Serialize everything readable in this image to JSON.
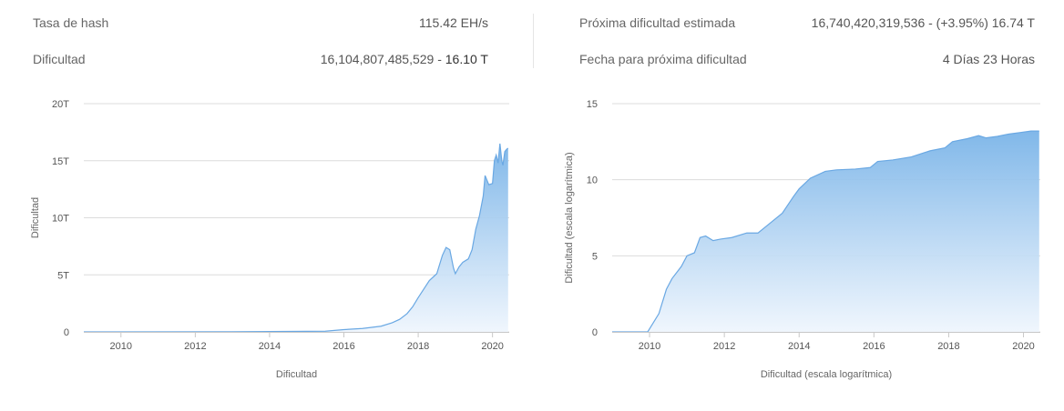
{
  "stats": {
    "hashrate_label": "Tasa de hash",
    "hashrate_value": "115.42 EH/s",
    "difficulty_label": "Dificultad",
    "difficulty_value": "16,104,807,485,529 - ",
    "difficulty_short": "16.10 T",
    "next_difficulty_label": "Próxima dificultad estimada",
    "next_difficulty_value": "16,740,420,319,536 - (+3.95%) 16.74 T",
    "next_date_label": "Fecha para próxima dificultad",
    "next_date_value": "4 Días 23 Horas"
  },
  "colors": {
    "area_top": "#7ab4e8",
    "area_bottom": "#eef5fd",
    "line": "#6aa8e3",
    "grid": "#dcdcdc"
  },
  "chart_data": [
    {
      "type": "area",
      "xlabel": "Dificultad",
      "ylabel": "Dificultad",
      "xlim": [
        2009.0,
        2020.45
      ],
      "ylim": [
        0,
        20
      ],
      "y_ticks": [
        0,
        5,
        10,
        15,
        20
      ],
      "y_tick_labels": [
        "0",
        "5T",
        "10T",
        "15T",
        "20T"
      ],
      "x_ticks": [
        2010,
        2012,
        2014,
        2016,
        2018,
        2020
      ],
      "x_tick_labels": [
        "2010",
        "2012",
        "2014",
        "2016",
        "2018",
        "2020"
      ],
      "grid": true,
      "x": [
        2009.0,
        2013.0,
        2015.5,
        2016.0,
        2016.5,
        2017.0,
        2017.3,
        2017.5,
        2017.7,
        2017.85,
        2018.0,
        2018.1,
        2018.3,
        2018.5,
        2018.65,
        2018.75,
        2018.85,
        2018.95,
        2019.0,
        2019.1,
        2019.2,
        2019.35,
        2019.45,
        2019.55,
        2019.65,
        2019.75,
        2019.8,
        2019.9,
        2020.0,
        2020.05,
        2020.1,
        2020.15,
        2020.2,
        2020.25,
        2020.28,
        2020.33,
        2020.38,
        2020.42
      ],
      "y": [
        0.0,
        0.01,
        0.06,
        0.2,
        0.3,
        0.5,
        0.8,
        1.1,
        1.6,
        2.2,
        3.0,
        3.5,
        4.5,
        5.1,
        6.7,
        7.4,
        7.2,
        5.6,
        5.1,
        5.7,
        6.1,
        6.4,
        7.2,
        9.0,
        10.2,
        11.9,
        13.7,
        12.9,
        13.0,
        15.0,
        15.5,
        14.8,
        16.5,
        15.0,
        14.6,
        15.8,
        16.0,
        16.1
      ]
    },
    {
      "type": "area",
      "xlabel": "Dificultad (escala logarítmica)",
      "ylabel": "Dificultad (escala logarítmica)",
      "xlim": [
        2009.0,
        2020.45
      ],
      "ylim": [
        0,
        15
      ],
      "y_ticks": [
        0,
        5,
        10,
        15
      ],
      "y_tick_labels": [
        "0",
        "5",
        "10",
        "15"
      ],
      "x_ticks": [
        2010,
        2012,
        2014,
        2016,
        2018,
        2020
      ],
      "x_tick_labels": [
        "2010",
        "2012",
        "2014",
        "2016",
        "2018",
        "2020"
      ],
      "grid": true,
      "x": [
        2009.0,
        2009.95,
        2010.1,
        2010.25,
        2010.45,
        2010.6,
        2010.85,
        2011.0,
        2011.2,
        2011.35,
        2011.5,
        2011.7,
        2011.9,
        2012.2,
        2012.6,
        2012.9,
        2013.2,
        2013.55,
        2013.85,
        2014.0,
        2014.3,
        2014.7,
        2015.0,
        2015.5,
        2015.9,
        2016.1,
        2016.5,
        2017.0,
        2017.5,
        2017.9,
        2018.1,
        2018.5,
        2018.8,
        2019.0,
        2019.3,
        2019.6,
        2019.9,
        2020.2,
        2020.42
      ],
      "y": [
        0.0,
        0.0,
        0.6,
        1.2,
        2.8,
        3.5,
        4.3,
        5.0,
        5.2,
        6.2,
        6.3,
        6.0,
        6.1,
        6.2,
        6.5,
        6.5,
        7.1,
        7.8,
        8.9,
        9.4,
        10.1,
        10.55,
        10.65,
        10.7,
        10.8,
        11.2,
        11.3,
        11.5,
        11.9,
        12.1,
        12.5,
        12.7,
        12.9,
        12.75,
        12.85,
        13.0,
        13.1,
        13.2,
        13.2
      ]
    }
  ]
}
